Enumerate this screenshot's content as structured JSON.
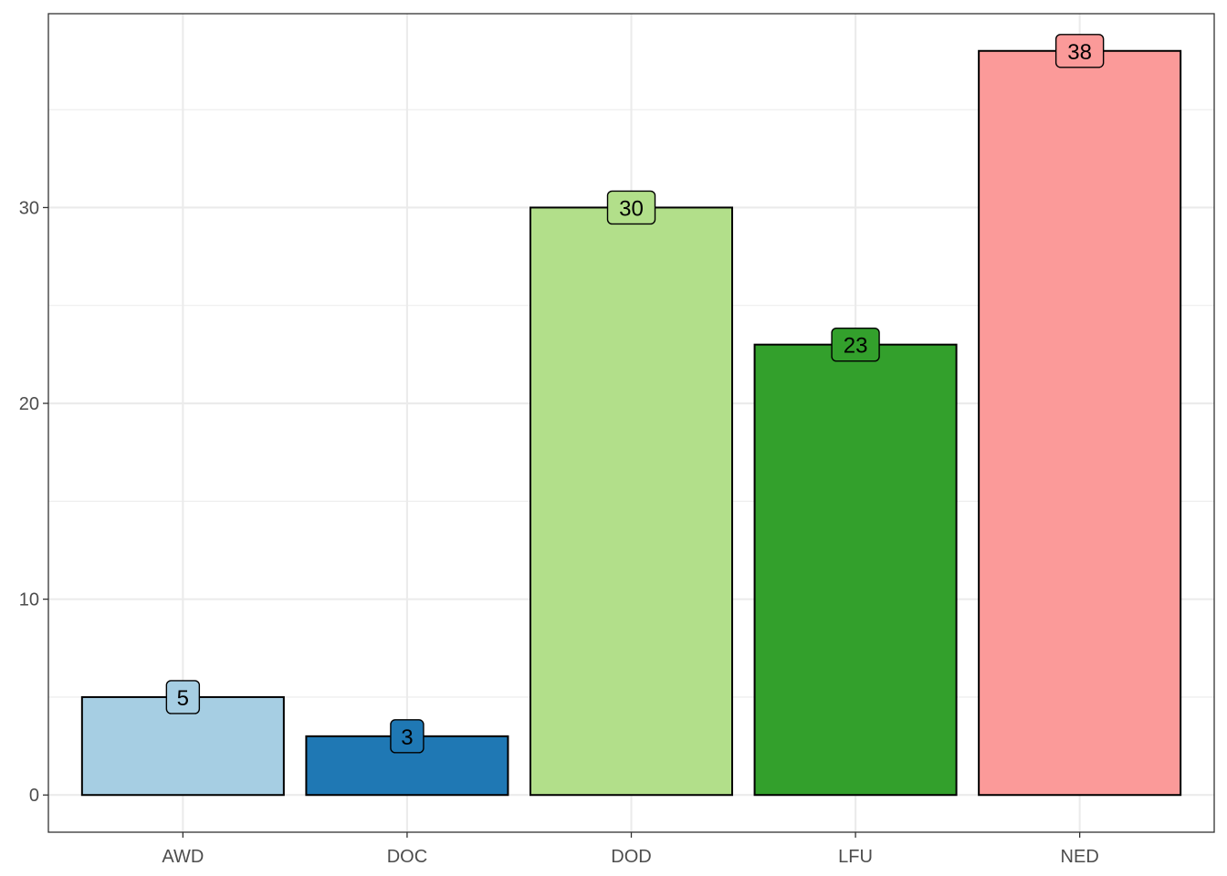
{
  "chart_data": {
    "type": "bar",
    "categories": [
      "AWD",
      "DOC",
      "DOD",
      "LFU",
      "NED"
    ],
    "values": [
      5,
      3,
      30,
      23,
      38
    ],
    "data_labels": [
      "5",
      "3",
      "30",
      "23",
      "38"
    ],
    "colors": [
      "#a6cee3",
      "#1f78b4",
      "#b2df8a",
      "#33a02c",
      "#fb9a99"
    ],
    "title": "",
    "xlabel": "",
    "ylabel": "",
    "ylim": [
      -1.9,
      39.9
    ],
    "yticks": [
      0,
      10,
      20,
      30
    ],
    "ytick_labels": [
      "0",
      "10",
      "20",
      "30"
    ],
    "grid": true,
    "legend": "none"
  }
}
